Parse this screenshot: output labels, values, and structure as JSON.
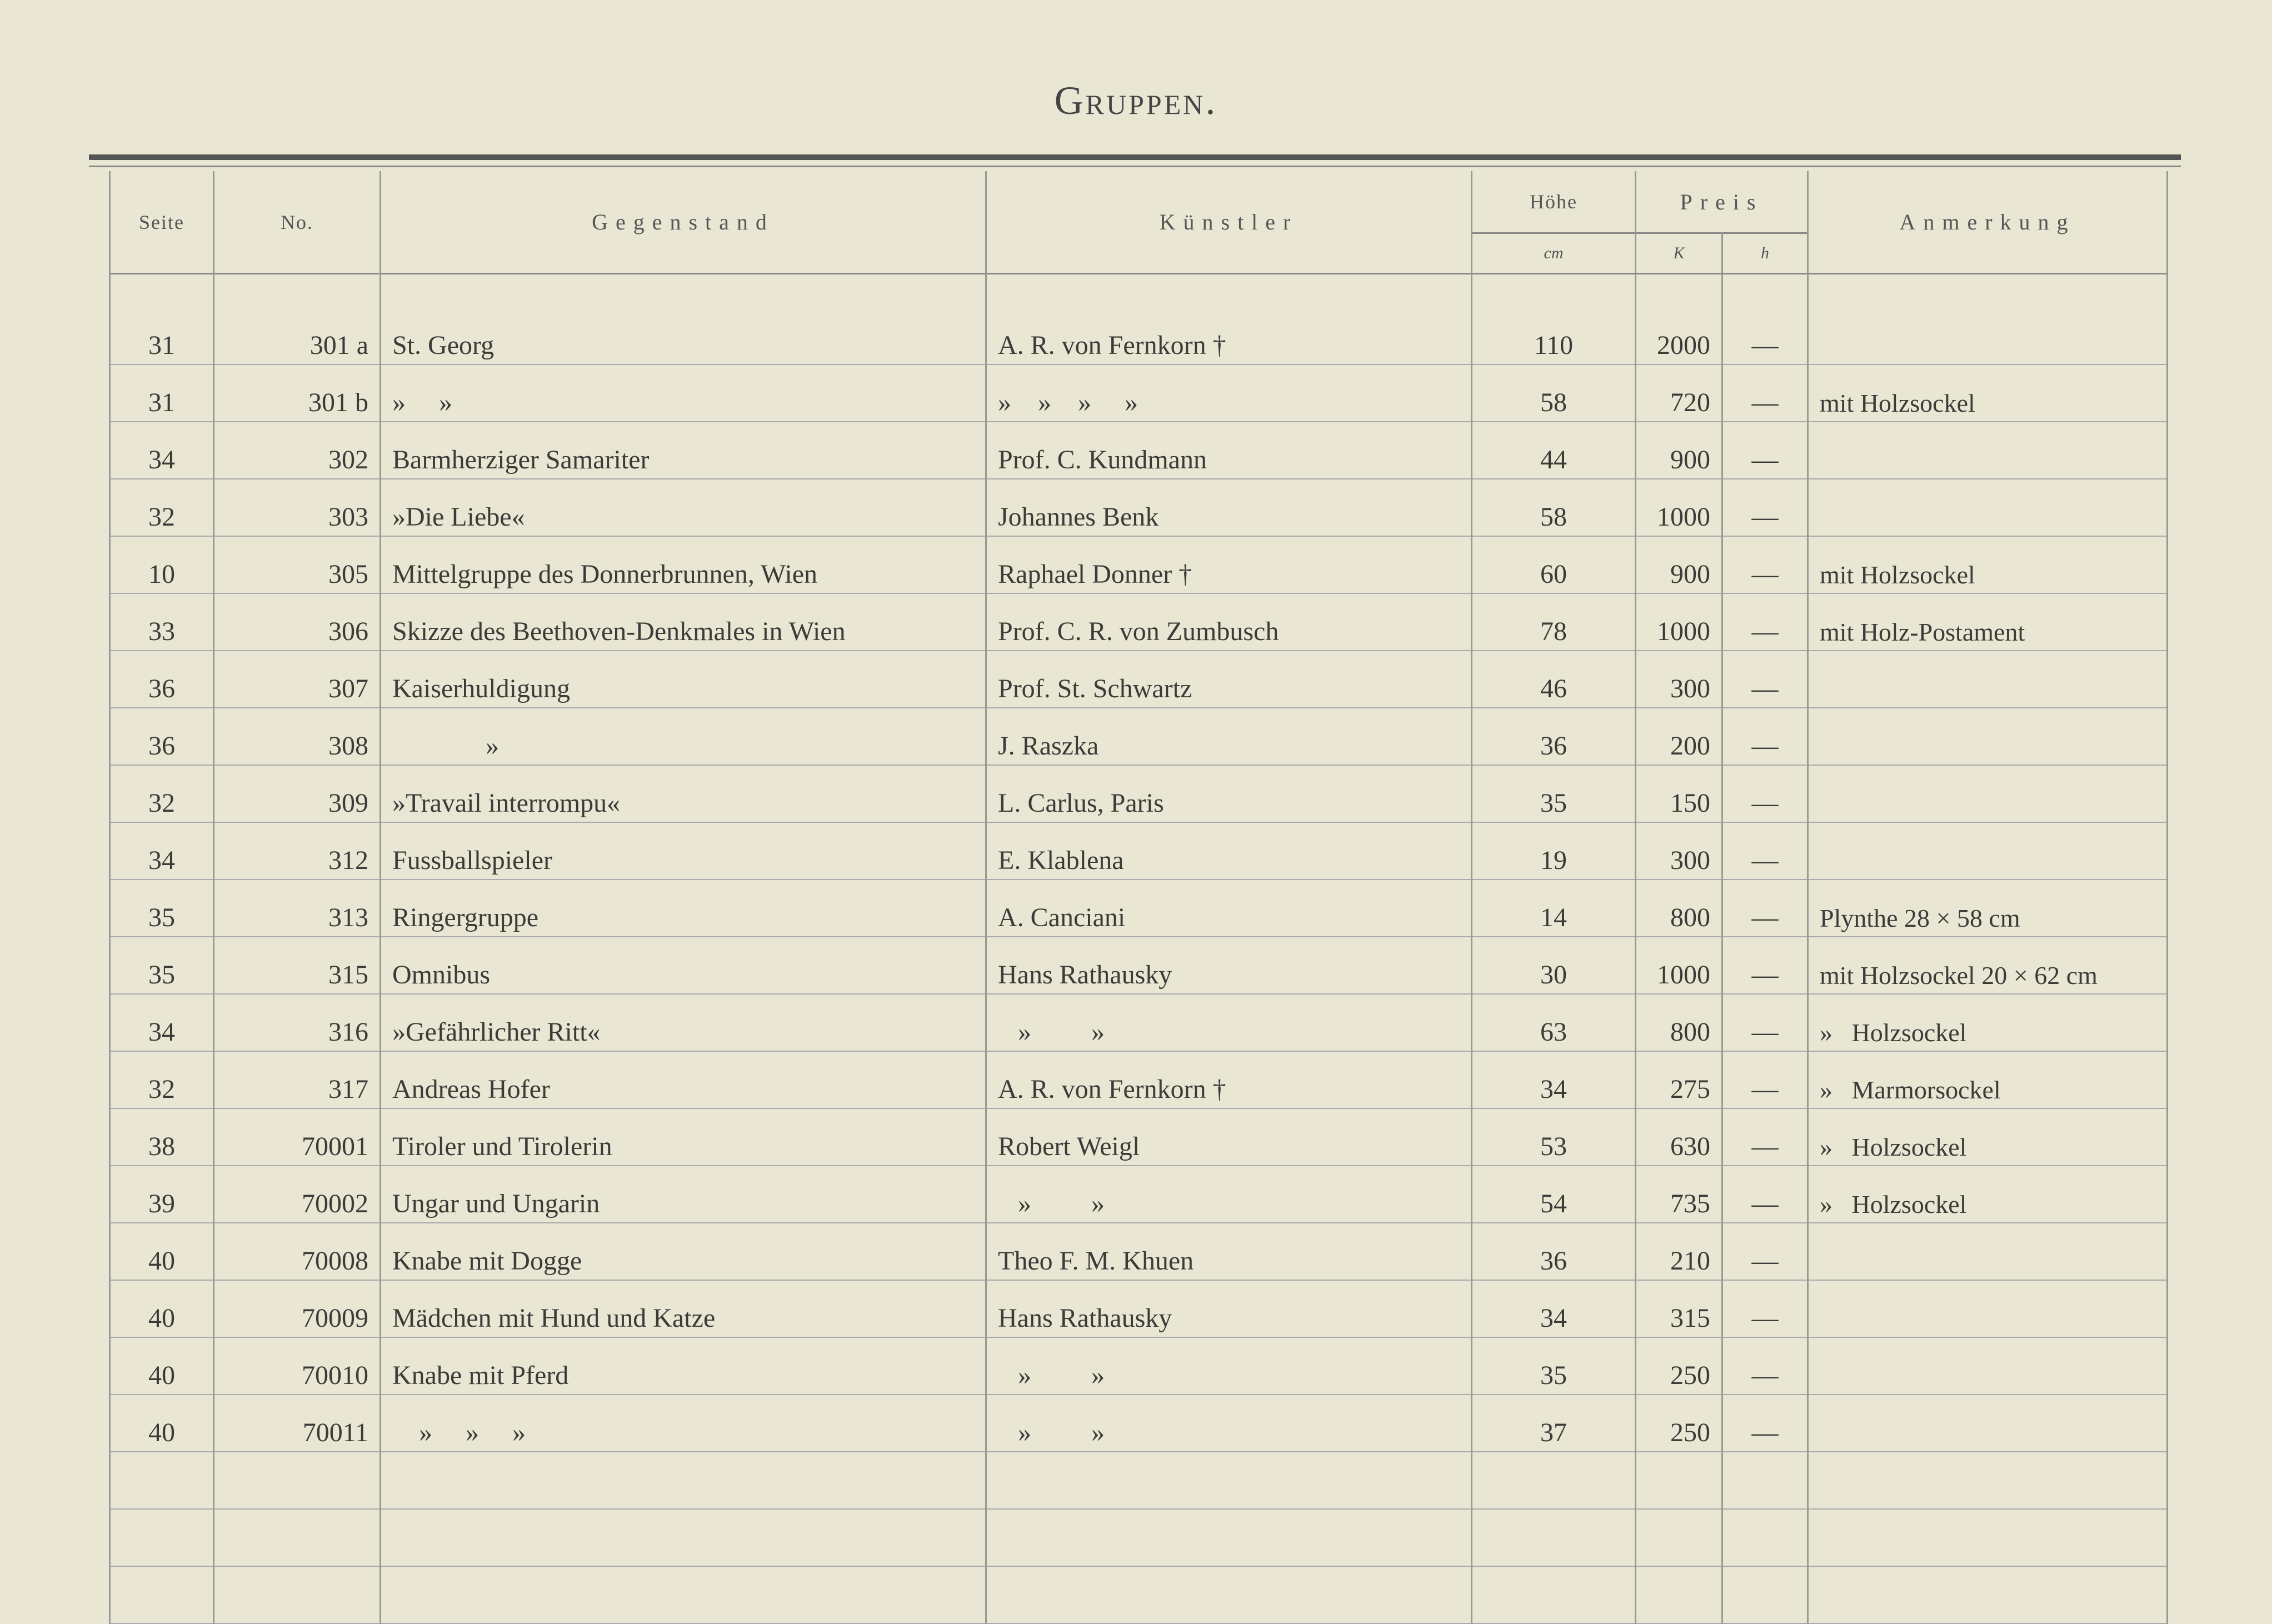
{
  "title": "Gruppen.",
  "headers": {
    "seite": "Seite",
    "no": "No.",
    "gegenstand": "Gegenstand",
    "kuenstler": "Künstler",
    "hoehe": "Höhe",
    "hoehe_unit": "cm",
    "preis": "Preis",
    "preis_k": "K",
    "preis_h": "h",
    "anmerkung": "Anmerkung"
  },
  "rows": [
    {
      "seite": "31",
      "no": "301 a",
      "gegenstand": "St. Georg",
      "kuenstler": "A. R. von Fernkorn †",
      "hoehe": "110",
      "k": "2000",
      "h": "—",
      "anmerkung": ""
    },
    {
      "seite": "31",
      "no": "301 b",
      "gegenstand": "»     »",
      "kuenstler": "»    »    »     »",
      "hoehe": "58",
      "k": "720",
      "h": "—",
      "anmerkung": "mit Holzsockel"
    },
    {
      "seite": "34",
      "no": "302",
      "gegenstand": "Barmherziger Samariter",
      "kuenstler": "Prof. C. Kundmann",
      "hoehe": "44",
      "k": "900",
      "h": "—",
      "anmerkung": ""
    },
    {
      "seite": "32",
      "no": "303",
      "gegenstand": "»Die Liebe«",
      "kuenstler": "Johannes Benk",
      "hoehe": "58",
      "k": "1000",
      "h": "—",
      "anmerkung": ""
    },
    {
      "seite": "10",
      "no": "305",
      "gegenstand": "Mittelgruppe des Donnerbrunnen, Wien",
      "kuenstler": "Raphael Donner †",
      "hoehe": "60",
      "k": "900",
      "h": "—",
      "anmerkung": "mit Holzsockel"
    },
    {
      "seite": "33",
      "no": "306",
      "gegenstand": "Skizze des Beethoven-Denkmales in Wien",
      "kuenstler": "Prof. C. R. von Zumbusch",
      "hoehe": "78",
      "k": "1000",
      "h": "—",
      "anmerkung": "mit Holz-Postament"
    },
    {
      "seite": "36",
      "no": "307",
      "gegenstand": "Kaiserhuldigung",
      "kuenstler": "Prof. St. Schwartz",
      "hoehe": "46",
      "k": "300",
      "h": "—",
      "anmerkung": ""
    },
    {
      "seite": "36",
      "no": "308",
      "gegenstand": "              »",
      "kuenstler": "J. Raszka",
      "hoehe": "36",
      "k": "200",
      "h": "—",
      "anmerkung": ""
    },
    {
      "seite": "32",
      "no": "309",
      "gegenstand": "»Travail interrompu«",
      "kuenstler": "L. Carlus, Paris",
      "hoehe": "35",
      "k": "150",
      "h": "—",
      "anmerkung": ""
    },
    {
      "seite": "34",
      "no": "312",
      "gegenstand": "Fussballspieler",
      "kuenstler": "E. Klablena",
      "hoehe": "19",
      "k": "300",
      "h": "—",
      "anmerkung": ""
    },
    {
      "seite": "35",
      "no": "313",
      "gegenstand": "Ringergruppe",
      "kuenstler": "A. Canciani",
      "hoehe": "14",
      "k": "800",
      "h": "—",
      "anmerkung": "Plynthe 28 × 58 cm"
    },
    {
      "seite": "35",
      "no": "315",
      "gegenstand": "Omnibus",
      "kuenstler": "Hans Rathausky",
      "hoehe": "30",
      "k": "1000",
      "h": "—",
      "anmerkung": "mit Holzsockel 20 × 62 cm"
    },
    {
      "seite": "34",
      "no": "316",
      "gegenstand": "»Gefährlicher Ritt«",
      "kuenstler": "   »         »",
      "hoehe": "63",
      "k": "800",
      "h": "—",
      "anmerkung": "»   Holzsockel"
    },
    {
      "seite": "32",
      "no": "317",
      "gegenstand": "Andreas Hofer",
      "kuenstler": "A. R. von Fernkorn †",
      "hoehe": "34",
      "k": "275",
      "h": "—",
      "anmerkung": "»   Marmorsockel"
    },
    {
      "seite": "38",
      "no": "70001",
      "gegenstand": "Tiroler und Tirolerin",
      "kuenstler": "Robert Weigl",
      "hoehe": "53",
      "k": "630",
      "h": "—",
      "anmerkung": "»   Holzsockel"
    },
    {
      "seite": "39",
      "no": "70002",
      "gegenstand": "Ungar und Ungarin",
      "kuenstler": "   »         »",
      "hoehe": "54",
      "k": "735",
      "h": "—",
      "anmerkung": "»   Holzsockel"
    },
    {
      "seite": "40",
      "no": "70008",
      "gegenstand": "Knabe mit Dogge",
      "kuenstler": "Theo F. M. Khuen",
      "hoehe": "36",
      "k": "210",
      "h": "—",
      "anmerkung": ""
    },
    {
      "seite": "40",
      "no": "70009",
      "gegenstand": "Mädchen mit Hund und Katze",
      "kuenstler": "Hans Rathausky",
      "hoehe": "34",
      "k": "315",
      "h": "—",
      "anmerkung": ""
    },
    {
      "seite": "40",
      "no": "70010",
      "gegenstand": "Knabe mit Pferd",
      "kuenstler": "   »         »",
      "hoehe": "35",
      "k": "250",
      "h": "—",
      "anmerkung": ""
    },
    {
      "seite": "40",
      "no": "70011",
      "gegenstand": "    »     »     »",
      "kuenstler": "   »         »",
      "hoehe": "37",
      "k": "250",
      "h": "—",
      "anmerkung": ""
    }
  ]
}
